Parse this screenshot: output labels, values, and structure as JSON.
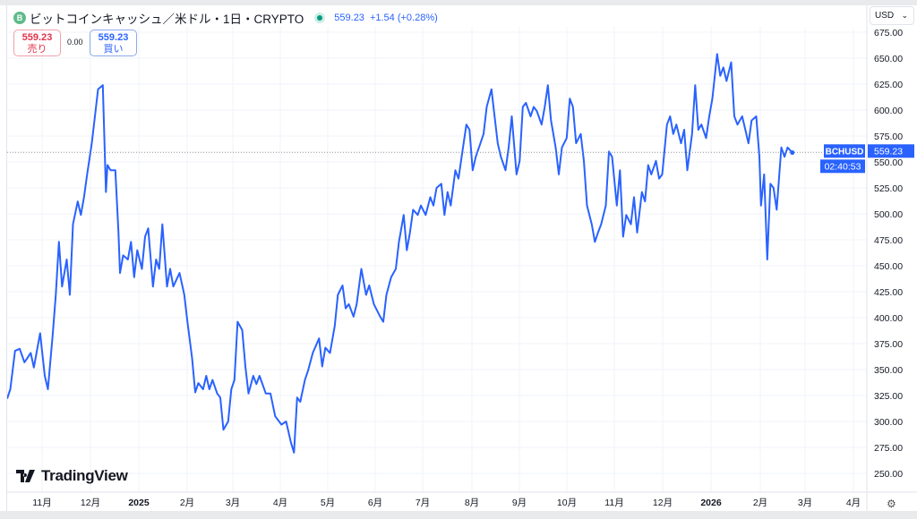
{
  "header": {
    "coin_badge": "B",
    "title": "ビットコインキャッシュ／米ドル・1日・CRYPTO",
    "price": "559.23",
    "change": "+1.54 (+0.28%)"
  },
  "sell": {
    "price": "559.23",
    "label": "売り"
  },
  "spread": "0.00",
  "buy": {
    "price": "559.23",
    "label": "買い"
  },
  "currency": "USD",
  "symbol_label": "BCHUSD",
  "last_price": "559.23",
  "countdown": "02:40:53",
  "logo": "TradingView",
  "colors": {
    "line": "#2962ff",
    "sell": "#e0334a",
    "buy": "#2962ff"
  },
  "chart_data": {
    "type": "line",
    "title": "ビットコインキャッシュ／米ドル・1日・CRYPTO",
    "xlabel": "",
    "ylabel": "",
    "ylim": [
      240,
      680
    ],
    "yticks": [
      "250.00",
      "275.00",
      "300.00",
      "325.00",
      "350.00",
      "375.00",
      "400.00",
      "425.00",
      "450.00",
      "475.00",
      "500.00",
      "525.00",
      "550.00",
      "575.00",
      "600.00",
      "625.00",
      "650.00",
      "675.00"
    ],
    "xticks": [
      "11月",
      "12月",
      "2025",
      "2月",
      "3月",
      "4月",
      "5月",
      "6月",
      "7月",
      "8月",
      "9月",
      "10月",
      "11月",
      "12月",
      "2026",
      "2月",
      "3月",
      "4月"
    ],
    "x_unit": "days from start (≈2024-10-10)",
    "series": [
      {
        "name": "BCHUSD",
        "points": [
          [
            0,
            322
          ],
          [
            2,
            331
          ],
          [
            5,
            368
          ],
          [
            8,
            370
          ],
          [
            11,
            357
          ],
          [
            15,
            366
          ],
          [
            17,
            352
          ],
          [
            21,
            385
          ],
          [
            24,
            344
          ],
          [
            26,
            331
          ],
          [
            29,
            383
          ],
          [
            31,
            422
          ],
          [
            33,
            473
          ],
          [
            35,
            430
          ],
          [
            38,
            456
          ],
          [
            40,
            422
          ],
          [
            42,
            490
          ],
          [
            45,
            512
          ],
          [
            47,
            499
          ],
          [
            49,
            516
          ],
          [
            51,
            538
          ],
          [
            54,
            568
          ],
          [
            56,
            594
          ],
          [
            58,
            620
          ],
          [
            61,
            624
          ],
          [
            63,
            521
          ],
          [
            64,
            547
          ],
          [
            66,
            542
          ],
          [
            69,
            542
          ],
          [
            71,
            482
          ],
          [
            72,
            443
          ],
          [
            74,
            460
          ],
          [
            77,
            456
          ],
          [
            79,
            473
          ],
          [
            81,
            439
          ],
          [
            83,
            465
          ],
          [
            86,
            447
          ],
          [
            88,
            478
          ],
          [
            90,
            486
          ],
          [
            93,
            430
          ],
          [
            95,
            456
          ],
          [
            97,
            447
          ],
          [
            99,
            490
          ],
          [
            102,
            430
          ],
          [
            104,
            447
          ],
          [
            106,
            430
          ],
          [
            110,
            443
          ],
          [
            113,
            422
          ],
          [
            115,
            396
          ],
          [
            118,
            361
          ],
          [
            120,
            328
          ],
          [
            122,
            337
          ],
          [
            125,
            331
          ],
          [
            127,
            344
          ],
          [
            129,
            331
          ],
          [
            131,
            340
          ],
          [
            134,
            327
          ],
          [
            136,
            323
          ],
          [
            138,
            292
          ],
          [
            141,
            300
          ],
          [
            143,
            331
          ],
          [
            145,
            340
          ],
          [
            147,
            396
          ],
          [
            150,
            388
          ],
          [
            152,
            353
          ],
          [
            154,
            327
          ],
          [
            157,
            344
          ],
          [
            159,
            336
          ],
          [
            161,
            344
          ],
          [
            165,
            327
          ],
          [
            168,
            327
          ],
          [
            171,
            305
          ],
          [
            175,
            297
          ],
          [
            178,
            300
          ],
          [
            181,
            280
          ],
          [
            183,
            270
          ],
          [
            185,
            323
          ],
          [
            187,
            319
          ],
          [
            190,
            340
          ],
          [
            192,
            349
          ],
          [
            195,
            366
          ],
          [
            199,
            380
          ],
          [
            201,
            353
          ],
          [
            203,
            371
          ],
          [
            206,
            366
          ],
          [
            209,
            392
          ],
          [
            211,
            422
          ],
          [
            214,
            431
          ],
          [
            216,
            409
          ],
          [
            218,
            413
          ],
          [
            221,
            401
          ],
          [
            223,
            413
          ],
          [
            226,
            447
          ],
          [
            229,
            422
          ],
          [
            231,
            431
          ],
          [
            234,
            413
          ],
          [
            238,
            401
          ],
          [
            240,
            396
          ],
          [
            242,
            422
          ],
          [
            245,
            439
          ],
          [
            248,
            447
          ],
          [
            250,
            473
          ],
          [
            253,
            499
          ],
          [
            255,
            465
          ],
          [
            257,
            482
          ],
          [
            259,
            504
          ],
          [
            262,
            499
          ],
          [
            264,
            508
          ],
          [
            267,
            499
          ],
          [
            270,
            516
          ],
          [
            272,
            508
          ],
          [
            274,
            525
          ],
          [
            277,
            529
          ],
          [
            279,
            499
          ],
          [
            281,
            521
          ],
          [
            283,
            508
          ],
          [
            286,
            542
          ],
          [
            288,
            534
          ],
          [
            290,
            555
          ],
          [
            293,
            586
          ],
          [
            295,
            581
          ],
          [
            297,
            542
          ],
          [
            299,
            555
          ],
          [
            302,
            568
          ],
          [
            304,
            577
          ],
          [
            306,
            603
          ],
          [
            309,
            620
          ],
          [
            311,
            594
          ],
          [
            313,
            568
          ],
          [
            315,
            555
          ],
          [
            318,
            542
          ],
          [
            320,
            564
          ],
          [
            322,
            594
          ],
          [
            325,
            538
          ],
          [
            327,
            551
          ],
          [
            329,
            603
          ],
          [
            331,
            607
          ],
          [
            334,
            594
          ],
          [
            336,
            603
          ],
          [
            338,
            599
          ],
          [
            341,
            586
          ],
          [
            343,
            603
          ],
          [
            345,
            624
          ],
          [
            347,
            590
          ],
          [
            350,
            564
          ],
          [
            352,
            538
          ],
          [
            354,
            564
          ],
          [
            357,
            573
          ],
          [
            359,
            611
          ],
          [
            361,
            603
          ],
          [
            363,
            568
          ],
          [
            366,
            577
          ],
          [
            368,
            551
          ],
          [
            370,
            508
          ],
          [
            373,
            490
          ],
          [
            375,
            473
          ],
          [
            377,
            482
          ],
          [
            379,
            490
          ],
          [
            382,
            508
          ],
          [
            384,
            560
          ],
          [
            386,
            555
          ],
          [
            389,
            508
          ],
          [
            391,
            542
          ],
          [
            393,
            478
          ],
          [
            395,
            499
          ],
          [
            398,
            490
          ],
          [
            400,
            516
          ],
          [
            402,
            482
          ],
          [
            405,
            521
          ],
          [
            407,
            512
          ],
          [
            409,
            547
          ],
          [
            411,
            538
          ],
          [
            414,
            551
          ],
          [
            416,
            534
          ],
          [
            418,
            538
          ],
          [
            421,
            586
          ],
          [
            423,
            594
          ],
          [
            425,
            577
          ],
          [
            427,
            586
          ],
          [
            430,
            568
          ],
          [
            432,
            581
          ],
          [
            434,
            542
          ],
          [
            437,
            577
          ],
          [
            439,
            624
          ],
          [
            441,
            581
          ],
          [
            443,
            586
          ],
          [
            446,
            573
          ],
          [
            448,
            594
          ],
          [
            450,
            611
          ],
          [
            453,
            654
          ],
          [
            455,
            633
          ],
          [
            457,
            641
          ],
          [
            459,
            628
          ],
          [
            462,
            646
          ],
          [
            464,
            594
          ],
          [
            466,
            586
          ],
          [
            469,
            594
          ],
          [
            471,
            581
          ],
          [
            473,
            568
          ],
          [
            475,
            590
          ],
          [
            478,
            594
          ],
          [
            480,
            555
          ],
          [
            481,
            508
          ],
          [
            483,
            538
          ],
          [
            485,
            456
          ],
          [
            487,
            529
          ],
          [
            489,
            525
          ],
          [
            491,
            504
          ],
          [
            494,
            564
          ],
          [
            496,
            555
          ],
          [
            498,
            564
          ],
          [
            501,
            559
          ]
        ]
      }
    ],
    "last_value": 559.23,
    "grid": true,
    "legend": "none"
  }
}
